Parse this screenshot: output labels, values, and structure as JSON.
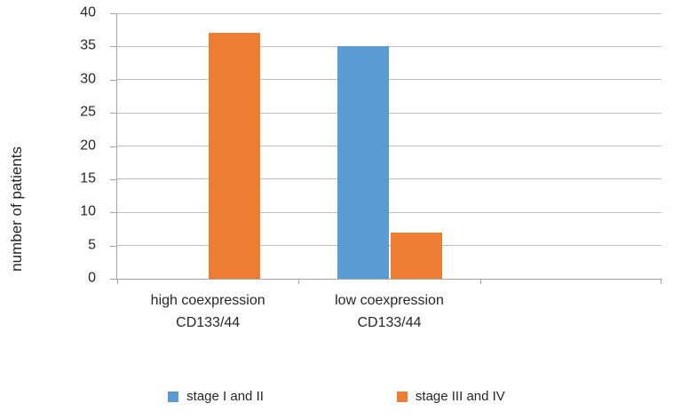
{
  "chart_data": {
    "type": "bar",
    "title": "",
    "xlabel": "",
    "ylabel": "number of patients",
    "categories": [
      "high coexpression\nCD133/44",
      "low coexpression\nCD133/44",
      ""
    ],
    "series": [
      {
        "name": "stage I and II",
        "color": "#5B9BD5",
        "values": [
          0,
          35,
          0
        ]
      },
      {
        "name": "stage III and IV",
        "color": "#ED7D31",
        "values": [
          37,
          7,
          0
        ]
      }
    ],
    "ylim": [
      0,
      40
    ],
    "ytick_step": 5,
    "yticks": [
      0,
      5,
      10,
      15,
      20,
      25,
      30,
      35,
      40
    ],
    "grid": "horizontal",
    "legend_position": "bottom",
    "axis_color": "#a6a6a6",
    "gridline_color": "#bfbfbf",
    "text_color": "#262626"
  }
}
